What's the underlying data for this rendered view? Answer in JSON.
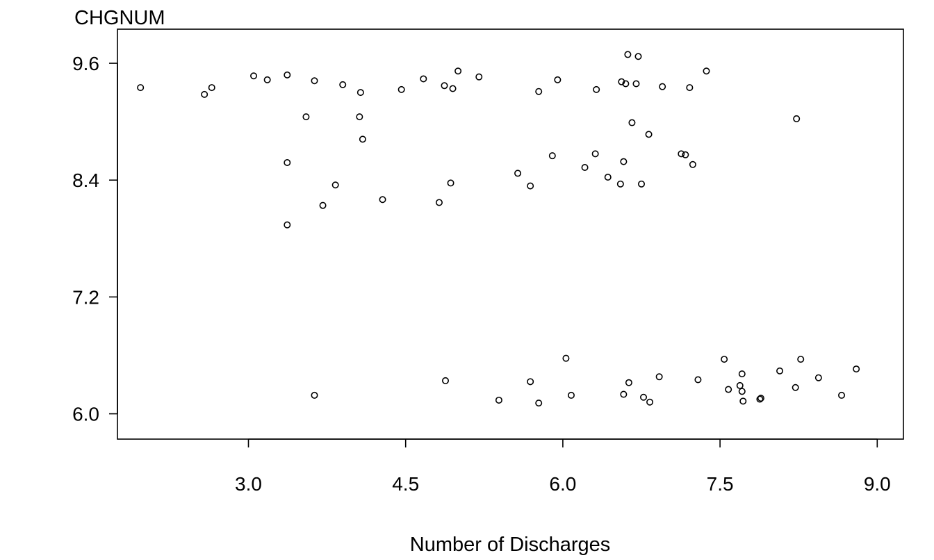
{
  "chart_data": {
    "type": "scatter",
    "title": "",
    "xlabel": "Number of Discharges",
    "ylabel": "CHGNUM",
    "xlim": [
      1.75,
      9.25
    ],
    "ylim": [
      5.74,
      9.95
    ],
    "x_ticks": [
      3.0,
      4.5,
      6.0,
      7.5,
      9.0
    ],
    "x_tick_labels": [
      "3.0",
      "4.5",
      "6.0",
      "7.5",
      "9.0"
    ],
    "y_ticks": [
      6.0,
      7.2,
      8.4,
      9.6
    ],
    "y_tick_labels": [
      "6.0",
      "7.2",
      "8.4",
      "9.6"
    ],
    "grid": false,
    "points": [
      {
        "x": 1.97,
        "y": 9.35
      },
      {
        "x": 2.58,
        "y": 9.28
      },
      {
        "x": 2.65,
        "y": 9.35
      },
      {
        "x": 3.05,
        "y": 9.47
      },
      {
        "x": 3.18,
        "y": 9.43
      },
      {
        "x": 3.37,
        "y": 9.48
      },
      {
        "x": 3.63,
        "y": 9.42
      },
      {
        "x": 3.9,
        "y": 9.38
      },
      {
        "x": 4.07,
        "y": 9.3
      },
      {
        "x": 4.46,
        "y": 9.33
      },
      {
        "x": 4.67,
        "y": 9.44
      },
      {
        "x": 4.87,
        "y": 9.37
      },
      {
        "x": 4.95,
        "y": 9.34
      },
      {
        "x": 5.0,
        "y": 9.52
      },
      {
        "x": 5.2,
        "y": 9.46
      },
      {
        "x": 5.77,
        "y": 9.31
      },
      {
        "x": 5.95,
        "y": 9.43
      },
      {
        "x": 6.32,
        "y": 9.33
      },
      {
        "x": 6.56,
        "y": 9.41
      },
      {
        "x": 6.6,
        "y": 9.39
      },
      {
        "x": 6.62,
        "y": 9.69
      },
      {
        "x": 6.7,
        "y": 9.39
      },
      {
        "x": 6.72,
        "y": 9.67
      },
      {
        "x": 6.95,
        "y": 9.36
      },
      {
        "x": 7.21,
        "y": 9.35
      },
      {
        "x": 7.37,
        "y": 9.52
      },
      {
        "x": 3.55,
        "y": 9.05
      },
      {
        "x": 4.06,
        "y": 9.05
      },
      {
        "x": 4.09,
        "y": 8.82
      },
      {
        "x": 6.66,
        "y": 8.99
      },
      {
        "x": 6.82,
        "y": 8.87
      },
      {
        "x": 8.23,
        "y": 9.03
      },
      {
        "x": 3.37,
        "y": 8.58
      },
      {
        "x": 3.83,
        "y": 8.35
      },
      {
        "x": 3.71,
        "y": 8.14
      },
      {
        "x": 3.37,
        "y": 7.94
      },
      {
        "x": 4.28,
        "y": 8.2
      },
      {
        "x": 4.82,
        "y": 8.17
      },
      {
        "x": 4.93,
        "y": 8.37
      },
      {
        "x": 5.57,
        "y": 8.47
      },
      {
        "x": 5.69,
        "y": 8.34
      },
      {
        "x": 5.9,
        "y": 8.65
      },
      {
        "x": 6.21,
        "y": 8.53
      },
      {
        "x": 6.31,
        "y": 8.67
      },
      {
        "x": 6.43,
        "y": 8.43
      },
      {
        "x": 6.55,
        "y": 8.36
      },
      {
        "x": 6.58,
        "y": 8.59
      },
      {
        "x": 6.75,
        "y": 8.36
      },
      {
        "x": 7.13,
        "y": 8.67
      },
      {
        "x": 7.17,
        "y": 8.66
      },
      {
        "x": 7.24,
        "y": 8.56
      },
      {
        "x": 3.63,
        "y": 6.19
      },
      {
        "x": 4.88,
        "y": 6.34
      },
      {
        "x": 5.39,
        "y": 6.14
      },
      {
        "x": 5.69,
        "y": 6.33
      },
      {
        "x": 5.77,
        "y": 6.11
      },
      {
        "x": 6.03,
        "y": 6.57
      },
      {
        "x": 6.08,
        "y": 6.19
      },
      {
        "x": 6.58,
        "y": 6.2
      },
      {
        "x": 6.63,
        "y": 6.32
      },
      {
        "x": 6.77,
        "y": 6.17
      },
      {
        "x": 6.83,
        "y": 6.12
      },
      {
        "x": 6.92,
        "y": 6.38
      },
      {
        "x": 7.29,
        "y": 6.35
      },
      {
        "x": 7.54,
        "y": 6.56
      },
      {
        "x": 7.58,
        "y": 6.25
      },
      {
        "x": 7.69,
        "y": 6.29
      },
      {
        "x": 7.71,
        "y": 6.41
      },
      {
        "x": 7.71,
        "y": 6.23
      },
      {
        "x": 7.72,
        "y": 6.13
      },
      {
        "x": 7.88,
        "y": 6.15
      },
      {
        "x": 7.89,
        "y": 6.16
      },
      {
        "x": 8.07,
        "y": 6.44
      },
      {
        "x": 8.22,
        "y": 6.27
      },
      {
        "x": 8.27,
        "y": 6.56
      },
      {
        "x": 8.44,
        "y": 6.37
      },
      {
        "x": 8.66,
        "y": 6.19
      },
      {
        "x": 8.8,
        "y": 6.46
      }
    ]
  }
}
